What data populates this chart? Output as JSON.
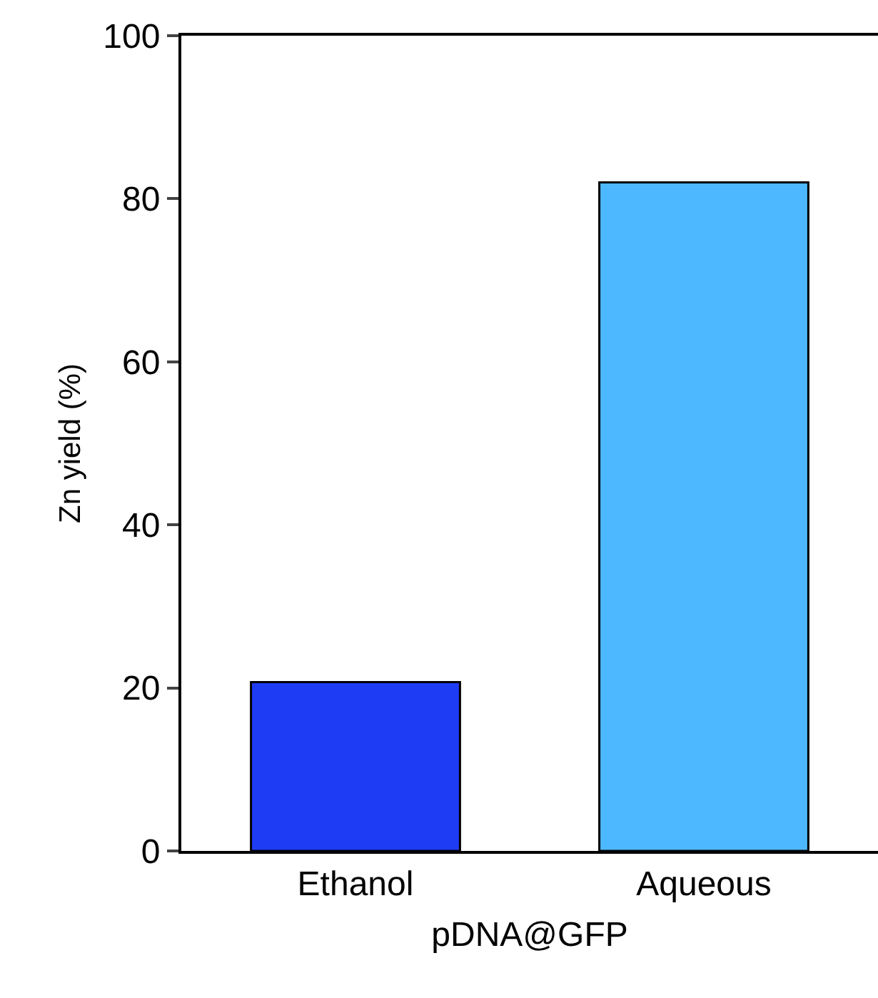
{
  "chart_data": {
    "type": "bar",
    "xlabel": "pDNA@GFP",
    "ylabel": "Zn yield (%)",
    "categories": [
      "Ethanol",
      "Aqueous"
    ],
    "values": [
      20.7,
      82.0
    ],
    "colors": [
      "#1f3cf5",
      "#4db8ff"
    ],
    "ylim": [
      0,
      100
    ],
    "yticks": [
      0,
      20,
      40,
      60,
      80,
      100
    ]
  }
}
